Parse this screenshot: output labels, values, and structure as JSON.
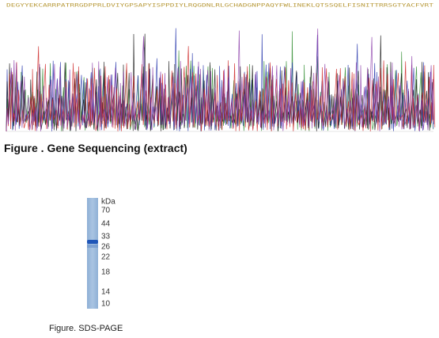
{
  "sequence": "DEGYYEKCARRPATRRGDPPRLDVIYGPSAPYISPPDIYLRQGDNLRLGCHADGNPPAQYFWLINEKLQTSSQELFISNITTRRSGTYACFVRT",
  "gene_caption": "Figure . Gene Sequencing (extract)",
  "gel": {
    "unit": "kDa",
    "markers": [
      "70",
      "44",
      "33",
      "26",
      "22",
      "18",
      "14",
      "10"
    ]
  },
  "gel_caption": "Figure. SDS-PAGE"
}
